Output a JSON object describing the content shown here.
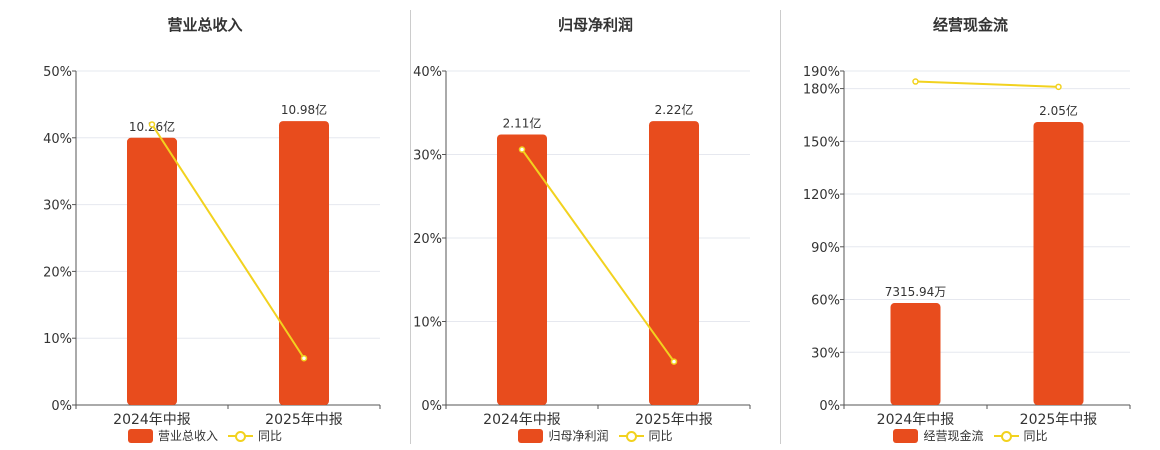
{
  "colors": {
    "bar": "#e84c1d",
    "line": "#f2d21f",
    "grid": "#e6e8ef",
    "axis": "#555555",
    "text": "#333333"
  },
  "chart_data": [
    {
      "type": "bar",
      "title": "营业总收入",
      "categories": [
        "2024年中报",
        "2025年中报"
      ],
      "series": [
        {
          "name": "营业总收入",
          "type": "bar",
          "values": [
            40,
            42.5
          ],
          "labels": [
            "10.26亿",
            "10.98亿"
          ]
        },
        {
          "name": "同比",
          "type": "line",
          "values": [
            42,
            7
          ]
        }
      ],
      "ylim": [
        0,
        50
      ],
      "yticks": [
        0,
        10,
        20,
        30,
        40,
        50
      ],
      "ytick_labels": [
        "0%",
        "10%",
        "20%",
        "30%",
        "40%",
        "50%"
      ],
      "grid": true,
      "legend": "bottom"
    },
    {
      "type": "bar",
      "title": "归母净利润",
      "categories": [
        "2024年中报",
        "2025年中报"
      ],
      "series": [
        {
          "name": "归母净利润",
          "type": "bar",
          "values": [
            32.4,
            34
          ],
          "labels": [
            "2.11亿",
            "2.22亿"
          ]
        },
        {
          "name": "同比",
          "type": "line",
          "values": [
            30.6,
            5.2
          ]
        }
      ],
      "ylim": [
        0,
        40
      ],
      "yticks": [
        0,
        10,
        20,
        30,
        40
      ],
      "ytick_labels": [
        "0%",
        "10%",
        "20%",
        "30%",
        "40%"
      ],
      "grid": true,
      "legend": "bottom"
    },
    {
      "type": "bar",
      "title": "经营现金流",
      "categories": [
        "2024年中报",
        "2025年中报"
      ],
      "series": [
        {
          "name": "经营现金流",
          "type": "bar",
          "values": [
            58,
            161
          ],
          "labels": [
            "7315.94万",
            "2.05亿"
          ]
        },
        {
          "name": "同比",
          "type": "line",
          "values": [
            184,
            181
          ]
        }
      ],
      "ylim": [
        0,
        190
      ],
      "yticks": [
        0,
        30,
        60,
        90,
        120,
        150,
        180,
        190
      ],
      "ytick_labels": [
        "0%",
        "30%",
        "60%",
        "90%",
        "120%",
        "150%",
        "180%",
        "190%"
      ],
      "grid": true,
      "legend": "bottom"
    }
  ]
}
